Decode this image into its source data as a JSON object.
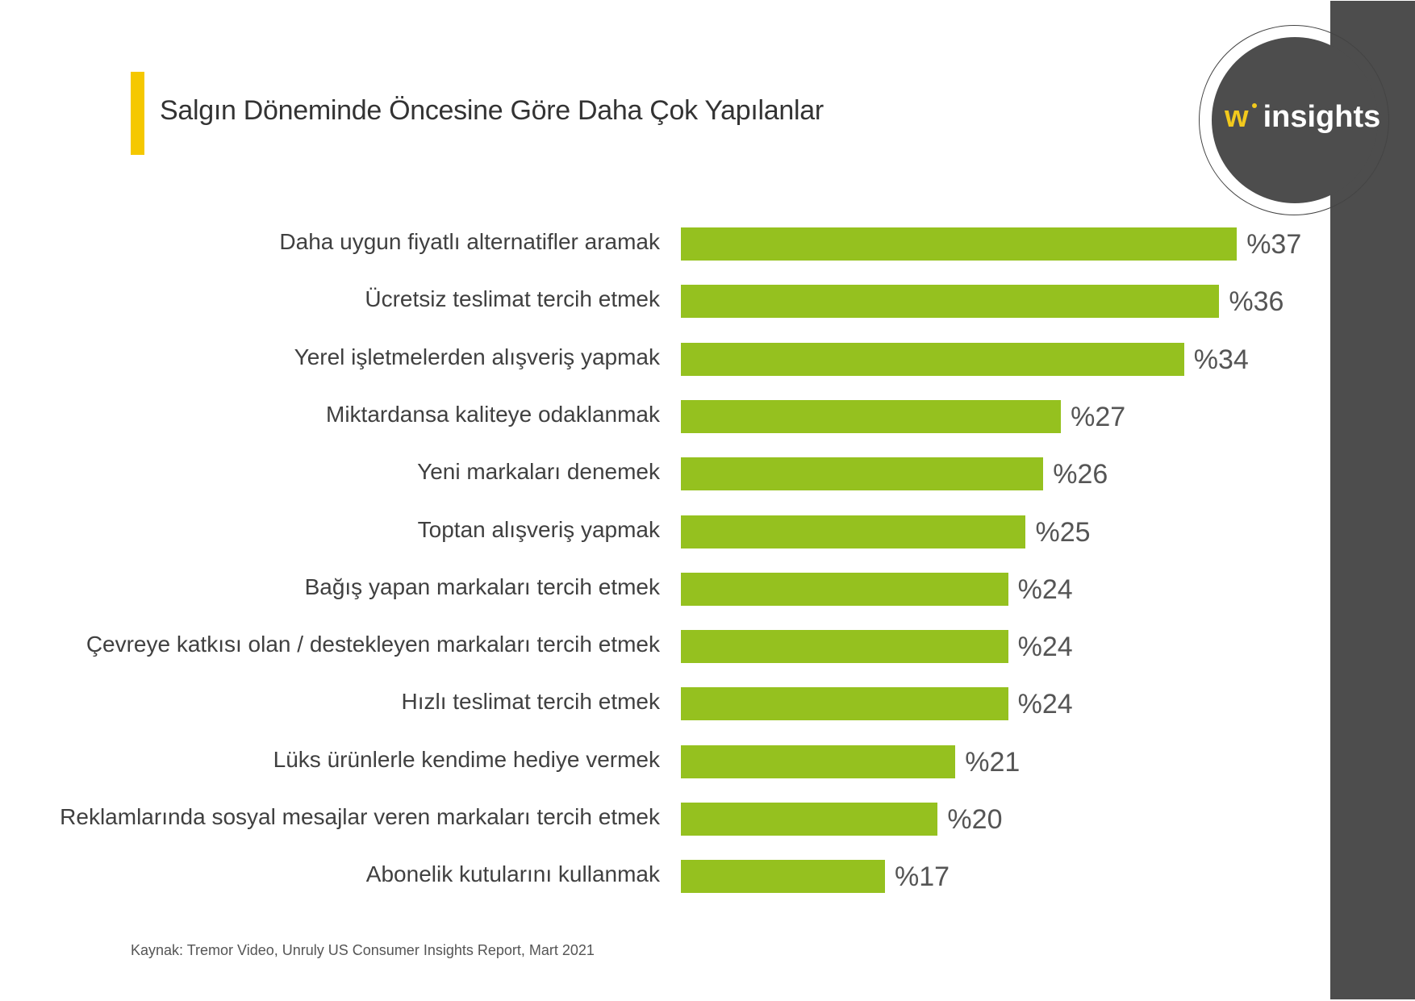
{
  "chart_data": {
    "type": "bar",
    "orientation": "horizontal",
    "title": "Salgın Döneminde Öncesine Göre Daha Çok Yapılanlar",
    "categories": [
      "Daha uygun fiyatlı alternatifler aramak",
      "Ücretsiz teslimat tercih etmek",
      "Yerel işletmelerden alışveriş yapmak",
      "Miktardansa kaliteye odaklanmak",
      "Yeni markaları denemek",
      "Toptan alışveriş yapmak",
      "Bağış yapan markaları tercih etmek",
      "Çevreye katkısı olan / destekleyen markaları tercih etmek",
      "Hızlı teslimat tercih etmek",
      "Lüks ürünlerle kendime hediye vermek",
      "Reklamlarında sosyal mesajlar veren markaları tercih etmek",
      "Abonelik kutularını kullanmak"
    ],
    "values": [
      37,
      36,
      34,
      27,
      26,
      25,
      24,
      24,
      24,
      21,
      20,
      17
    ],
    "value_labels": [
      "%37",
      "%36",
      "%34",
      "%27",
      "%26",
      "%25",
      "%24",
      "%24",
      "%24",
      "%21",
      "%20",
      "%17"
    ],
    "bar_color": "#95c11f",
    "grid": false,
    "legend": "none"
  },
  "logo": {
    "w": "w",
    "text": "insights"
  },
  "source": "Kaynak: Tremor Video, Unruly US Consumer Insights Report, Mart 2021",
  "colors": {
    "accent": "#f5c800",
    "panel": "#4d4d4d"
  }
}
